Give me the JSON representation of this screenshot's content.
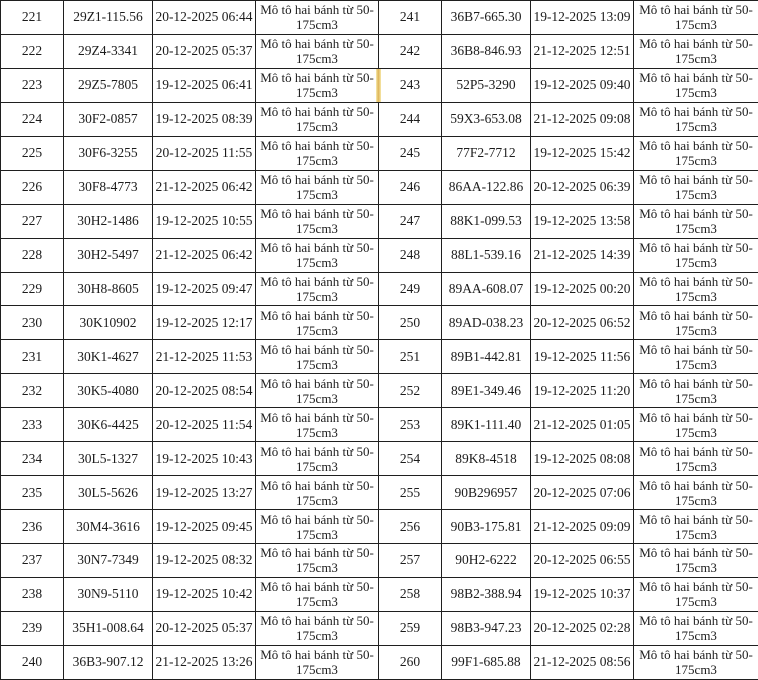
{
  "vehicle_type": "Mô tô hai bánh từ 50-175cm3",
  "highlight": {
    "color": "#ddb457",
    "note": "yellow strip on border left of cell 243"
  },
  "rows": [
    {
      "no_l": "221",
      "plate_l": "29Z1-115.56",
      "dt_l": "20-12-2025 06:44",
      "no_r": "241",
      "plate_r": "36B7-665.30",
      "dt_r": "19-12-2025 13:09"
    },
    {
      "no_l": "222",
      "plate_l": "29Z4-3341",
      "dt_l": "20-12-2025 05:37",
      "no_r": "242",
      "plate_r": "36B8-846.93",
      "dt_r": "21-12-2025 12:51"
    },
    {
      "no_l": "223",
      "plate_l": "29Z5-7805",
      "dt_l": "19-12-2025 06:41",
      "no_r": "243",
      "plate_r": "52P5-3290",
      "dt_r": "19-12-2025 09:40"
    },
    {
      "no_l": "224",
      "plate_l": "30F2-0857",
      "dt_l": "19-12-2025 08:39",
      "no_r": "244",
      "plate_r": "59X3-653.08",
      "dt_r": "21-12-2025 09:08"
    },
    {
      "no_l": "225",
      "plate_l": "30F6-3255",
      "dt_l": "20-12-2025 11:55",
      "no_r": "245",
      "plate_r": "77F2-7712",
      "dt_r": "19-12-2025 15:42"
    },
    {
      "no_l": "226",
      "plate_l": "30F8-4773",
      "dt_l": "21-12-2025 06:42",
      "no_r": "246",
      "plate_r": "86AA-122.86",
      "dt_r": "20-12-2025 06:39"
    },
    {
      "no_l": "227",
      "plate_l": "30H2-1486",
      "dt_l": "19-12-2025 10:55",
      "no_r": "247",
      "plate_r": "88K1-099.53",
      "dt_r": "19-12-2025 13:58"
    },
    {
      "no_l": "228",
      "plate_l": "30H2-5497",
      "dt_l": "21-12-2025 06:42",
      "no_r": "248",
      "plate_r": "88L1-539.16",
      "dt_r": "21-12-2025 14:39"
    },
    {
      "no_l": "229",
      "plate_l": "30H8-8605",
      "dt_l": "19-12-2025 09:47",
      "no_r": "249",
      "plate_r": "89AA-608.07",
      "dt_r": "19-12-2025 00:20"
    },
    {
      "no_l": "230",
      "plate_l": "30K10902",
      "dt_l": "19-12-2025 12:17",
      "no_r": "250",
      "plate_r": "89AD-038.23",
      "dt_r": "20-12-2025 06:52"
    },
    {
      "no_l": "231",
      "plate_l": "30K1-4627",
      "dt_l": "21-12-2025 11:53",
      "no_r": "251",
      "plate_r": "89B1-442.81",
      "dt_r": "19-12-2025 11:56"
    },
    {
      "no_l": "232",
      "plate_l": "30K5-4080",
      "dt_l": "20-12-2025 08:54",
      "no_r": "252",
      "plate_r": "89E1-349.46",
      "dt_r": "19-12-2025 11:20"
    },
    {
      "no_l": "233",
      "plate_l": "30K6-4425",
      "dt_l": "20-12-2025 11:54",
      "no_r": "253",
      "plate_r": "89K1-111.40",
      "dt_r": "21-12-2025 01:05"
    },
    {
      "no_l": "234",
      "plate_l": "30L5-1327",
      "dt_l": "19-12-2025 10:43",
      "no_r": "254",
      "plate_r": "89K8-4518",
      "dt_r": "19-12-2025 08:08"
    },
    {
      "no_l": "235",
      "plate_l": "30L5-5626",
      "dt_l": "19-12-2025 13:27",
      "no_r": "255",
      "plate_r": "90B296957",
      "dt_r": "20-12-2025 07:06"
    },
    {
      "no_l": "236",
      "plate_l": "30M4-3616",
      "dt_l": "19-12-2025 09:45",
      "no_r": "256",
      "plate_r": "90B3-175.81",
      "dt_r": "21-12-2025 09:09"
    },
    {
      "no_l": "237",
      "plate_l": "30N7-7349",
      "dt_l": "19-12-2025 08:32",
      "no_r": "257",
      "plate_r": "90H2-6222",
      "dt_r": "20-12-2025 06:55"
    },
    {
      "no_l": "238",
      "plate_l": "30N9-5110",
      "dt_l": "19-12-2025 10:42",
      "no_r": "258",
      "plate_r": "98B2-388.94",
      "dt_r": "19-12-2025 10:37"
    },
    {
      "no_l": "239",
      "plate_l": "35H1-008.64",
      "dt_l": "20-12-2025 05:37",
      "no_r": "259",
      "plate_r": "98B3-947.23",
      "dt_r": "20-12-2025 02:28"
    },
    {
      "no_l": "240",
      "plate_l": "36B3-907.12",
      "dt_l": "21-12-2025 13:26",
      "no_r": "260",
      "plate_r": "99F1-685.88",
      "dt_r": "21-12-2025 08:56"
    }
  ]
}
